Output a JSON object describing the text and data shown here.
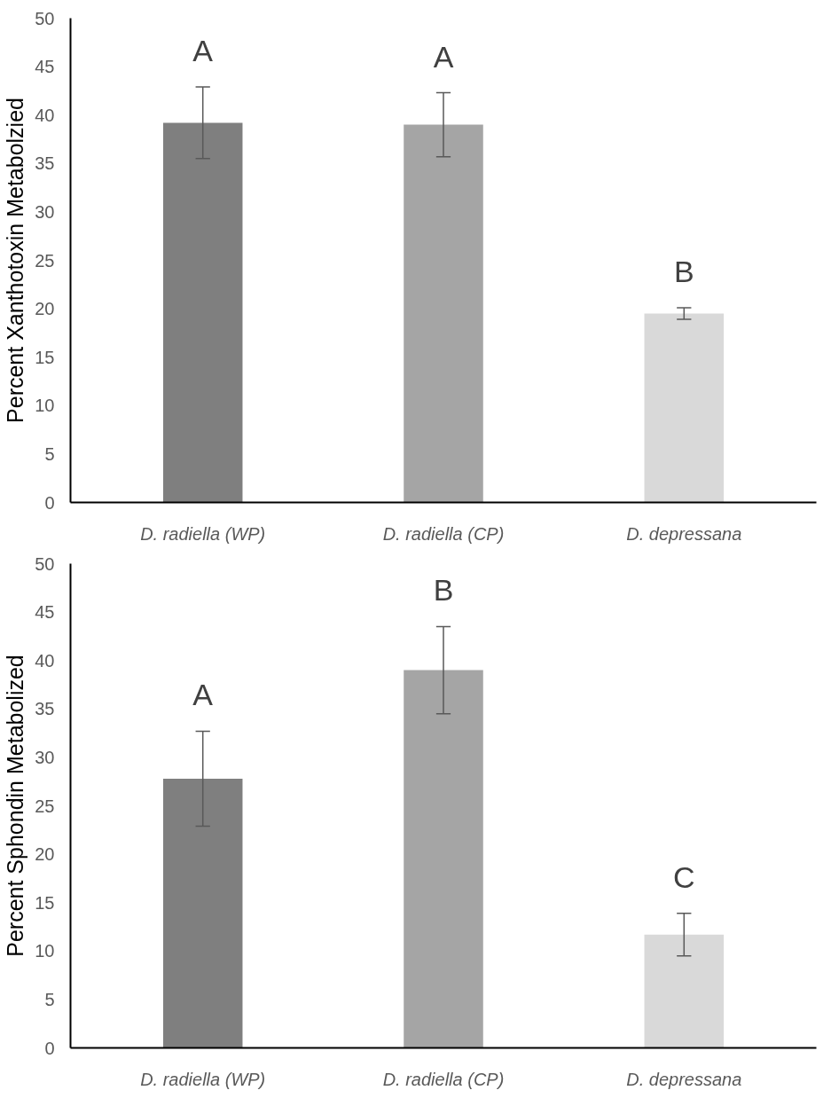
{
  "chart_data": [
    {
      "type": "bar",
      "ylabel": "Percent Xanthotoxin Metabolzied",
      "categories": [
        "D. radiella (WP)",
        "D. radiella (CP)",
        "D. depressana"
      ],
      "values": [
        39.2,
        39.0,
        19.5
      ],
      "colors": [
        "#7f7f7f",
        "#a5a5a5",
        "#d9d9d9"
      ],
      "errors": [
        3.7,
        3.3,
        0.6
      ],
      "ylim": [
        0,
        50
      ],
      "yticks": [
        0,
        5,
        10,
        15,
        20,
        25,
        30,
        35,
        40,
        45,
        50
      ],
      "grid": false,
      "annotations": [
        "A",
        "A",
        "B"
      ]
    },
    {
      "type": "bar",
      "ylabel": "Percent Sphondin Metabolized",
      "categories": [
        "D. radiella (WP)",
        "D. radiella (CP)",
        "D. depressana"
      ],
      "values": [
        27.8,
        39.0,
        11.7
      ],
      "colors": [
        "#7f7f7f",
        "#a5a5a5",
        "#d9d9d9"
      ],
      "errors": [
        4.9,
        4.5,
        2.2
      ],
      "ylim": [
        0,
        50
      ],
      "yticks": [
        0,
        5,
        10,
        15,
        20,
        25,
        30,
        35,
        40,
        45,
        50
      ],
      "grid": false,
      "annotations": [
        "A",
        "B",
        "C"
      ]
    }
  ]
}
